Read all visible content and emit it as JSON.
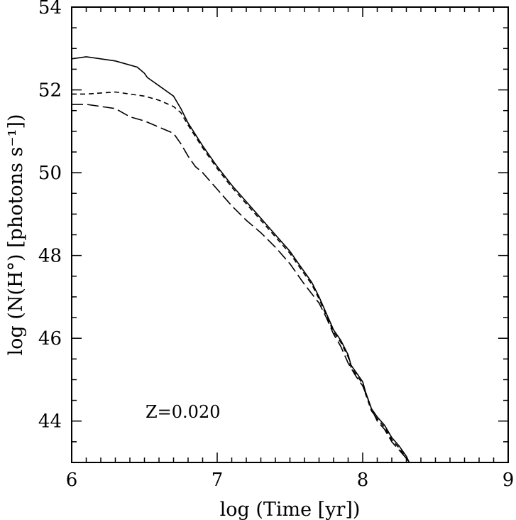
{
  "chart_data": {
    "type": "line",
    "xlabel": "log (Time [yr])",
    "ylabel": "log (N(H°) [photons s⁻¹])",
    "xlim": [
      6,
      9
    ],
    "ylim": [
      43,
      54
    ],
    "xticks": [
      6,
      7,
      8,
      9
    ],
    "yticks": [
      44,
      46,
      48,
      50,
      52,
      54
    ],
    "grid": false,
    "annotation": "Z=0.020",
    "series": [
      {
        "style": "solid",
        "x": [
          6.0,
          6.1,
          6.3,
          6.45,
          6.5,
          6.52,
          6.6,
          6.7,
          6.75,
          6.8,
          6.9,
          7.0,
          7.1,
          7.2,
          7.3,
          7.4,
          7.5,
          7.55,
          7.6,
          7.65,
          7.7,
          7.75,
          7.8,
          7.85,
          7.9,
          7.92,
          7.95,
          8.0,
          8.02,
          8.04,
          8.06,
          8.1,
          8.15,
          8.2,
          8.25,
          8.3,
          8.32
        ],
        "y": [
          52.75,
          52.8,
          52.7,
          52.55,
          52.4,
          52.3,
          52.1,
          51.85,
          51.55,
          51.2,
          50.65,
          50.15,
          49.7,
          49.3,
          48.9,
          48.5,
          48.1,
          47.85,
          47.6,
          47.35,
          47.0,
          46.6,
          46.2,
          45.95,
          45.6,
          45.35,
          45.2,
          44.95,
          44.7,
          44.5,
          44.3,
          44.1,
          43.9,
          43.6,
          43.4,
          43.15,
          43.0
        ]
      },
      {
        "style": "short-dash",
        "x": [
          6.0,
          6.1,
          6.3,
          6.5,
          6.6,
          6.7,
          6.75,
          6.8,
          6.9,
          7.0,
          7.1,
          7.2,
          7.3,
          7.4,
          7.5,
          7.55,
          7.6,
          7.65,
          7.7,
          7.75,
          7.8,
          7.85,
          7.9,
          7.92,
          7.95,
          8.0,
          8.02,
          8.04,
          8.06,
          8.1,
          8.15,
          8.2,
          8.25,
          8.3,
          8.32
        ],
        "y": [
          51.9,
          51.9,
          51.95,
          51.85,
          51.75,
          51.6,
          51.45,
          51.15,
          50.6,
          50.1,
          49.65,
          49.25,
          48.85,
          48.45,
          48.05,
          47.8,
          47.55,
          47.3,
          46.95,
          46.55,
          46.15,
          45.9,
          45.55,
          45.3,
          45.15,
          44.9,
          44.65,
          44.45,
          44.25,
          44.05,
          43.85,
          43.55,
          43.35,
          43.1,
          43.0
        ]
      },
      {
        "style": "long-dash",
        "x": [
          6.0,
          6.1,
          6.3,
          6.4,
          6.5,
          6.6,
          6.7,
          6.75,
          6.8,
          6.85,
          6.9,
          7.0,
          7.1,
          7.2,
          7.3,
          7.4,
          7.5,
          7.6,
          7.7,
          7.75,
          7.8,
          7.85,
          7.9,
          7.95,
          8.0,
          8.04,
          8.06,
          8.1,
          8.15,
          8.2,
          8.25,
          8.3,
          8.32
        ],
        "y": [
          51.65,
          51.65,
          51.55,
          51.35,
          51.25,
          51.1,
          50.95,
          50.7,
          50.4,
          50.15,
          50.0,
          49.6,
          49.2,
          48.85,
          48.55,
          48.2,
          47.8,
          47.3,
          46.85,
          46.5,
          46.1,
          45.8,
          45.4,
          45.1,
          44.85,
          44.5,
          44.3,
          44.0,
          43.8,
          43.5,
          43.3,
          43.1,
          43.0
        ]
      }
    ]
  }
}
